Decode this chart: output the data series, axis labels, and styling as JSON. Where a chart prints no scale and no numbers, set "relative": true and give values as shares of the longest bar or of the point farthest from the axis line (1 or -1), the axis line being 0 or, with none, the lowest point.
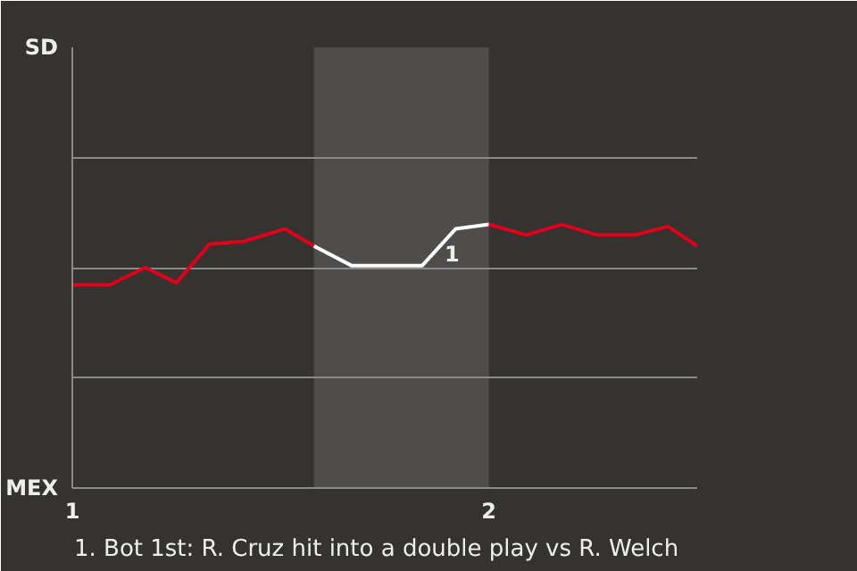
{
  "chart_data": {
    "type": "line",
    "relative": true,
    "xlim": [
      1,
      2.5
    ],
    "xticks": [
      1,
      2
    ],
    "ylim": [
      0,
      1.672
    ],
    "grid": "y",
    "marker": "none",
    "line_style": "solid",
    "series": [
      {
        "color": "#e0001b",
        "x": [
          1.0,
          1.09,
          1.175,
          1.25,
          1.33,
          1.41,
          1.51,
          1.58
        ],
        "values": [
          0.771,
          0.771,
          0.836,
          0.779,
          0.926,
          0.935,
          0.983,
          0.918
        ]
      },
      {
        "color": "#ffffff",
        "x": [
          1.58,
          1.67,
          1.84,
          1.92,
          2.0
        ],
        "values": [
          0.918,
          0.844,
          0.844,
          0.983,
          1
        ]
      },
      {
        "color": "#e0001b",
        "x": [
          2.0,
          2.09,
          2.175,
          2.26,
          2.35,
          2.43,
          2.5
        ],
        "values": [
          1,
          0.96,
          1,
          0.96,
          0.96,
          0.992,
          0.918
        ]
      }
    ],
    "bands": [
      {
        "axis": "x",
        "from": 1.58,
        "to": 2.0,
        "color": "#4f4d4b"
      }
    ],
    "annotations": [
      "SD",
      "MEX",
      {
        "text": "1",
        "x": 1.92,
        "y": 0.983
      },
      "1. Bot 1st: R. Cruz hit into a double play vs R. Welch"
    ]
  }
}
